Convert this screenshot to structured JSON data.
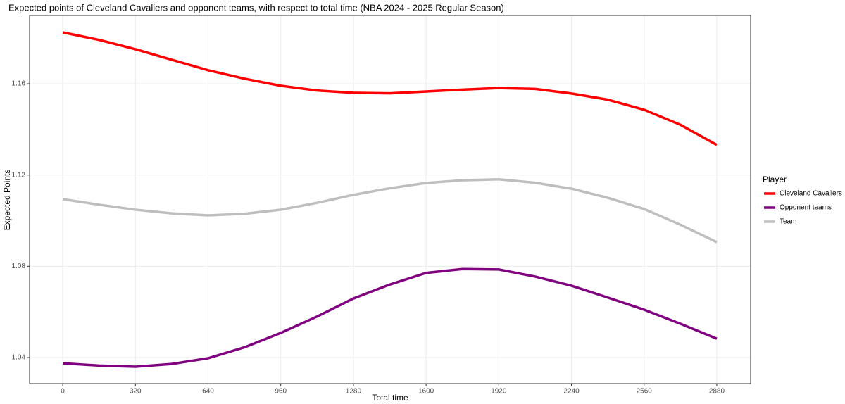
{
  "chart_data": {
    "type": "line",
    "title": "Expected points of Cleveland Cavaliers and opponent teams, with respect to total time (NBA 2024 - 2025 Regular Season)",
    "x_label": "Total time",
    "y_label": "Expected Points",
    "legend_title": "Player",
    "x": [
      0,
      160,
      320,
      480,
      640,
      800,
      960,
      1120,
      1280,
      1440,
      1600,
      1760,
      1920,
      2080,
      2240,
      2400,
      2560,
      2720,
      2880
    ],
    "series": [
      {
        "name": "Cleveland Cavaliers",
        "color": "#ff0000",
        "values": [
          1.1825,
          1.1792,
          1.1751,
          1.1705,
          1.1659,
          1.1622,
          1.1591,
          1.157,
          1.156,
          1.1558,
          1.1566,
          1.1574,
          1.1581,
          1.1577,
          1.1557,
          1.153,
          1.1486,
          1.142,
          1.1332
        ]
      },
      {
        "name": "Opponent teams",
        "color": "#800080",
        "values": [
          1.0375,
          1.0365,
          1.036,
          1.0372,
          1.0397,
          1.0445,
          1.0508,
          1.058,
          1.0659,
          1.072,
          1.0771,
          1.0788,
          1.0786,
          1.0755,
          1.0715,
          1.0663,
          1.061,
          1.0548,
          1.0483
        ]
      },
      {
        "name": "Team",
        "color": "#bebebe",
        "values": [
          1.1094,
          1.107,
          1.1048,
          1.1032,
          1.1023,
          1.103,
          1.1048,
          1.1078,
          1.1113,
          1.1142,
          1.1165,
          1.1177,
          1.1181,
          1.1166,
          1.114,
          1.11,
          1.1051,
          1.0982,
          1.0906
        ]
      }
    ],
    "xlim": [
      -146,
      3029
    ],
    "xticks": [
      0,
      320,
      640,
      960,
      1280,
      1600,
      1920,
      2240,
      2560,
      2880
    ],
    "ylim": [
      1.0286,
      1.1899
    ],
    "yticks": [
      1.04,
      1.08,
      1.12,
      1.16
    ],
    "grid": true,
    "legend_position": "right"
  }
}
